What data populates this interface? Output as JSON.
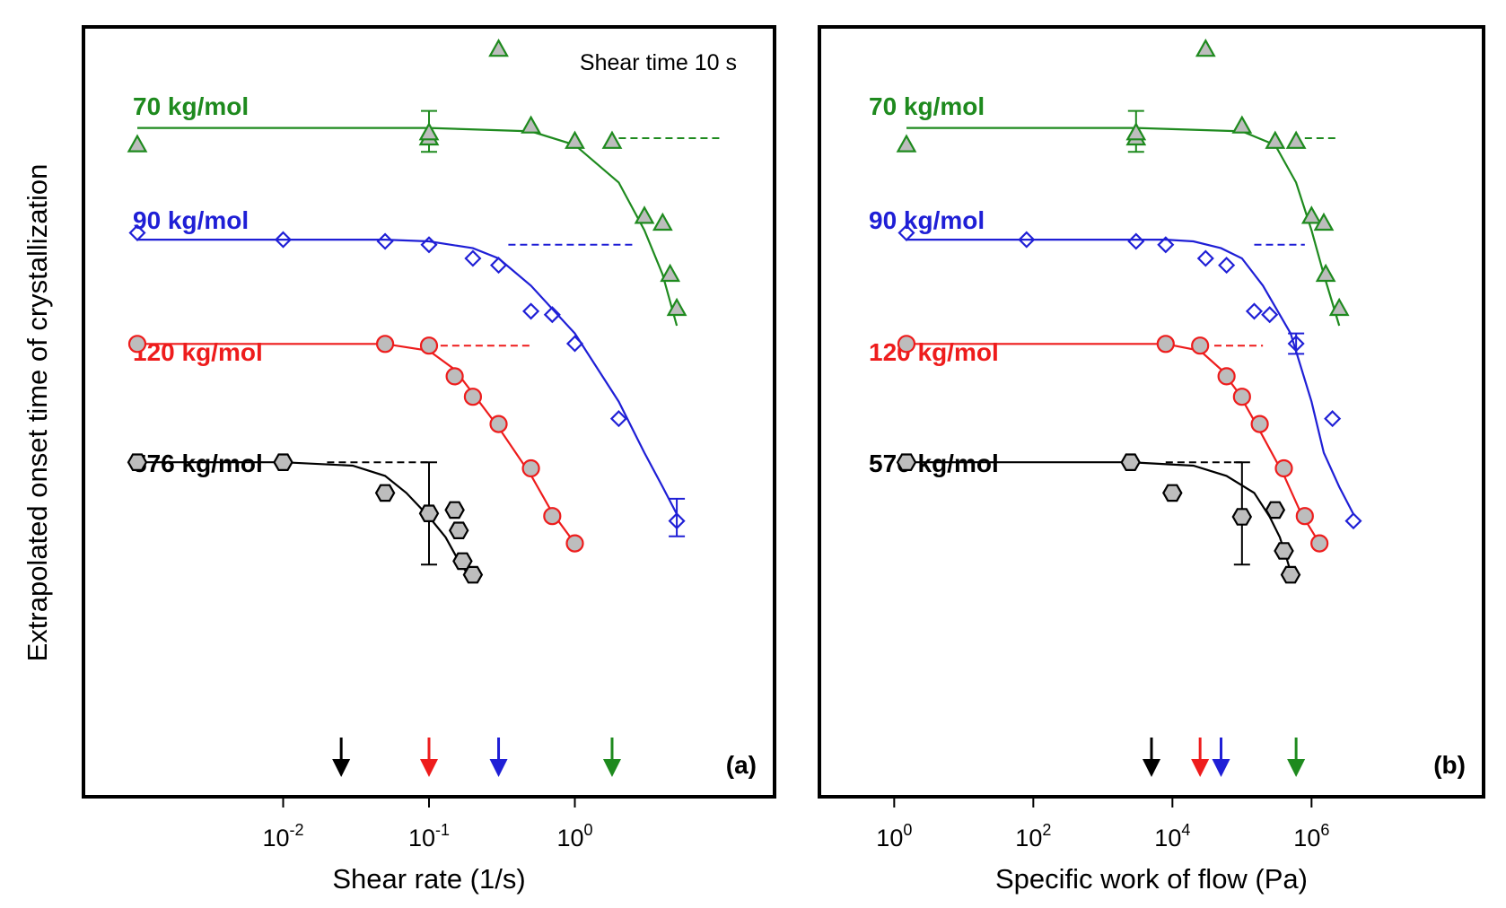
{
  "ylabel": "Extrapolated onset time of crystallization",
  "colors": {
    "70 kg/mol": "#1e8a1e",
    "90 kg/mol": "#1f1fd6",
    "120 kg/mol": "#ee1c1c",
    "576 kg/mol": "#000000",
    "marker_fill": "#bdbdbd"
  },
  "chart_data": [
    {
      "type": "scatter",
      "panel": "(a)",
      "annotation": "Shear time 10 s",
      "xlabel": "Shear rate (1/s)",
      "x_scale": "log",
      "xlim": [
        0.001,
        10
      ],
      "x_ticks": [
        {
          "value": 0.01,
          "base": "10",
          "exp": "-2"
        },
        {
          "value": 0.1,
          "base": "10",
          "exp": "-1"
        },
        {
          "value": 1,
          "base": "10",
          "exp": "0"
        }
      ],
      "y_axis": "relative offset per series (no tick labels)",
      "series": [
        {
          "name": "70 kg/mol",
          "marker": "triangle",
          "color": "#1e8a1e",
          "x": [
            0.001,
            0.1,
            0.1,
            0.3,
            0.5,
            1,
            1.8,
            3,
            4,
            4.5,
            5
          ],
          "y": [
            0.93,
            0.95,
            0.965,
            1.21,
            0.985,
            0.94,
            0.94,
            0.72,
            0.7,
            0.55,
            0.45
          ],
          "fit_x": [
            0.001,
            0.1,
            0.5,
            1,
            2,
            3,
            4,
            5
          ],
          "fit_y": [
            0.98,
            0.98,
            0.97,
            0.93,
            0.82,
            0.68,
            0.55,
            0.4
          ],
          "plateau": [
            [
              2,
              10
            ]
          ],
          "plateau_y": 0.95,
          "error_bars": [
            {
              "x": 0.1,
              "y": 0.97,
              "err": 0.06
            }
          ],
          "arrow_x": 1.8
        },
        {
          "name": "90 kg/mol",
          "marker": "diamond",
          "color": "#1f1fd6",
          "x": [
            0.001,
            0.01,
            0.05,
            0.1,
            0.2,
            0.3,
            0.5,
            0.7,
            1,
            2,
            5
          ],
          "y": [
            0.975,
            0.955,
            0.95,
            0.94,
            0.9,
            0.88,
            0.745,
            0.735,
            0.65,
            0.43,
            0.13
          ],
          "fit_x": [
            0.001,
            0.05,
            0.1,
            0.2,
            0.3,
            0.5,
            1,
            2,
            3,
            4,
            5
          ],
          "fit_y": [
            0.955,
            0.955,
            0.95,
            0.93,
            0.9,
            0.82,
            0.68,
            0.48,
            0.33,
            0.23,
            0.15
          ],
          "plateau": [
            [
              0.35,
              2.5
            ]
          ],
          "plateau_y": 0.94,
          "error_bars": [
            {
              "x": 5,
              "y": 0.14,
              "err": 0.055
            }
          ],
          "arrow_x": 0.3
        },
        {
          "name": "120 kg/mol",
          "marker": "circle",
          "color": "#ee1c1c",
          "x": [
            0.001,
            0.05,
            0.1,
            0.15,
            0.2,
            0.3,
            0.5,
            0.7,
            1
          ],
          "y": [
            0.965,
            0.965,
            0.96,
            0.87,
            0.81,
            0.73,
            0.6,
            0.46,
            0.38
          ],
          "fit_x": [
            0.001,
            0.05,
            0.1,
            0.15,
            0.2,
            0.3,
            0.5,
            0.7,
            1
          ],
          "fit_y": [
            0.965,
            0.965,
            0.945,
            0.89,
            0.82,
            0.72,
            0.58,
            0.47,
            0.38
          ],
          "plateau": [
            [
              0.12,
              0.5
            ]
          ],
          "plateau_y": 0.96,
          "arrow_x": 0.1
        },
        {
          "name": "576 kg/mol",
          "marker": "hexagon",
          "color": "#000000",
          "x": [
            0.001,
            0.01,
            0.05,
            0.1,
            0.15,
            0.16,
            0.17,
            0.2
          ],
          "y": [
            0.96,
            0.96,
            0.87,
            0.81,
            0.82,
            0.76,
            0.67,
            0.63
          ],
          "fit_x": [
            0.001,
            0.01,
            0.03,
            0.05,
            0.07,
            0.1,
            0.13,
            0.16,
            0.2
          ],
          "fit_y": [
            0.96,
            0.96,
            0.95,
            0.92,
            0.87,
            0.8,
            0.74,
            0.67,
            0.61
          ],
          "plateau": [
            [
              0.02,
              0.1
            ]
          ],
          "plateau_y": 0.96,
          "error_bars": [
            {
              "x": 0.1,
              "y": 0.81,
              "err": 0.15
            }
          ],
          "arrow_x": 0.025
        }
      ]
    },
    {
      "type": "scatter",
      "panel": "(b)",
      "xlabel": "Specific work of flow (Pa)",
      "x_scale": "log",
      "xlim": [
        0.5,
        50000000
      ],
      "x_ticks": [
        {
          "value": 1,
          "base": "10",
          "exp": "0"
        },
        {
          "value": 100,
          "base": "10",
          "exp": "2"
        },
        {
          "value": 10000,
          "base": "10",
          "exp": "4"
        },
        {
          "value": 1000000,
          "base": "10",
          "exp": "6"
        }
      ],
      "y_axis": "relative offset per series (no tick labels)",
      "series": [
        {
          "name": "70 kg/mol",
          "marker": "triangle",
          "color": "#1e8a1e",
          "x": [
            1.5,
            3000,
            3000,
            30000,
            100000,
            300000,
            600000,
            1000000,
            1500000,
            1600000,
            2500000
          ],
          "y": [
            0.93,
            0.95,
            0.965,
            1.21,
            0.985,
            0.94,
            0.94,
            0.72,
            0.7,
            0.55,
            0.45
          ],
          "fit_x": [
            1.5,
            3000,
            100000,
            300000,
            600000,
            1000000,
            1500000,
            2500000
          ],
          "fit_y": [
            0.98,
            0.98,
            0.97,
            0.93,
            0.82,
            0.68,
            0.55,
            0.4
          ],
          "plateau": [
            [
              800000,
              2500000
            ]
          ],
          "plateau_y": 0.95,
          "error_bars": [
            {
              "x": 3000,
              "y": 0.97,
              "err": 0.06
            }
          ],
          "arrow_x": 600000
        },
        {
          "name": "90 kg/mol",
          "marker": "diamond",
          "color": "#1f1fd6",
          "x": [
            1.5,
            80,
            3000,
            8000,
            30000,
            60000,
            150000,
            250000,
            600000,
            2000000,
            4000000
          ],
          "y": [
            0.975,
            0.955,
            0.95,
            0.94,
            0.9,
            0.88,
            0.745,
            0.735,
            0.65,
            0.43,
            0.13
          ],
          "fit_x": [
            1.5,
            8000,
            20000,
            50000,
            100000,
            200000,
            500000,
            1000000,
            1500000,
            2500000,
            4000000
          ],
          "fit_y": [
            0.955,
            0.955,
            0.95,
            0.93,
            0.9,
            0.82,
            0.68,
            0.48,
            0.33,
            0.23,
            0.15
          ],
          "plateau": [
            [
              150000,
              800000
            ]
          ],
          "plateau_y": 0.94,
          "error_bars": [
            {
              "x": 600000,
              "y": 0.65,
              "err": 0.03
            }
          ],
          "arrow_x": 50000
        },
        {
          "name": "120 kg/mol",
          "marker": "circle",
          "color": "#ee1c1c",
          "x": [
            1.5,
            8000,
            25000,
            60000,
            100000,
            180000,
            400000,
            800000,
            1300000
          ],
          "y": [
            0.965,
            0.965,
            0.96,
            0.87,
            0.81,
            0.73,
            0.6,
            0.46,
            0.38
          ],
          "fit_x": [
            1.5,
            8000,
            25000,
            50000,
            90000,
            170000,
            400000,
            700000,
            1300000
          ],
          "fit_y": [
            0.965,
            0.965,
            0.945,
            0.89,
            0.82,
            0.72,
            0.58,
            0.47,
            0.38
          ],
          "plateau": [
            [
              40000,
              200000
            ]
          ],
          "plateau_y": 0.96,
          "arrow_x": 25000
        },
        {
          "name": "576 kg/mol",
          "marker": "hexagon",
          "color": "#000000",
          "x": [
            1.5,
            2500,
            10000,
            100000,
            300000,
            400000,
            500000
          ],
          "y": [
            0.96,
            0.96,
            0.87,
            0.8,
            0.82,
            0.7,
            0.63
          ],
          "fit_x": [
            1.5,
            2500,
            20000,
            60000,
            150000,
            250000,
            350000,
            450000,
            550000
          ],
          "fit_y": [
            0.96,
            0.96,
            0.95,
            0.92,
            0.87,
            0.8,
            0.74,
            0.67,
            0.61
          ],
          "plateau": [
            [
              8000,
              100000
            ]
          ],
          "plateau_y": 0.96,
          "error_bars": [
            {
              "x": 100000,
              "y": 0.81,
              "err": 0.15
            }
          ],
          "arrow_x": 5000
        }
      ]
    }
  ]
}
